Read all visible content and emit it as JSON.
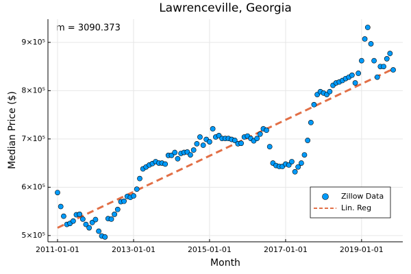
{
  "chart_data": {
    "type": "scatter",
    "title": "Lawrenceville, Georgia",
    "annotation": "m = 3090.373",
    "x_label": "Month",
    "y_label": "Median Price ($)",
    "xlim": [
      "2010-10-01",
      "2020-02-01"
    ],
    "xticks": [
      "2011-01-01",
      "2013-01-01",
      "2015-01-01",
      "2017-01-01",
      "2019-01-01"
    ],
    "ylim": [
      487000,
      948000
    ],
    "yticks": [
      {
        "value": 500000,
        "label": "5×10⁵"
      },
      {
        "value": 600000,
        "label": "6×10⁵"
      },
      {
        "value": 700000,
        "label": "7×10⁵"
      },
      {
        "value": 800000,
        "label": "8×10⁵"
      },
      {
        "value": 900000,
        "label": "9×10⁵"
      }
    ],
    "grid": true,
    "legend": "bottom right",
    "series": [
      {
        "name": "Zillow Data",
        "color": "#009af9",
        "kind": "scatter",
        "x": [
          "2011-01-01",
          "2011-02-01",
          "2011-03-01",
          "2011-04-01",
          "2011-05-01",
          "2011-06-01",
          "2011-07-01",
          "2011-08-01",
          "2011-09-01",
          "2011-10-01",
          "2011-11-01",
          "2011-12-01",
          "2012-01-01",
          "2012-02-01",
          "2012-03-01",
          "2012-04-01",
          "2012-05-01",
          "2012-06-01",
          "2012-07-01",
          "2012-08-01",
          "2012-09-01",
          "2012-10-01",
          "2012-11-01",
          "2012-12-01",
          "2013-01-01",
          "2013-02-01",
          "2013-03-01",
          "2013-04-01",
          "2013-05-01",
          "2013-06-01",
          "2013-07-01",
          "2013-08-01",
          "2013-09-01",
          "2013-10-01",
          "2013-11-01",
          "2013-12-01",
          "2014-01-01",
          "2014-02-01",
          "2014-03-01",
          "2014-04-01",
          "2014-05-01",
          "2014-06-01",
          "2014-07-01",
          "2014-08-01",
          "2014-09-01",
          "2014-10-01",
          "2014-11-01",
          "2014-12-01",
          "2015-01-01",
          "2015-02-01",
          "2015-03-01",
          "2015-04-01",
          "2015-05-01",
          "2015-06-01",
          "2015-07-01",
          "2015-08-01",
          "2015-09-01",
          "2015-10-01",
          "2015-11-01",
          "2015-12-01",
          "2016-01-01",
          "2016-02-01",
          "2016-03-01",
          "2016-04-01",
          "2016-05-01",
          "2016-06-01",
          "2016-07-01",
          "2016-08-01",
          "2016-09-01",
          "2016-10-01",
          "2016-11-01",
          "2016-12-01",
          "2017-01-01",
          "2017-02-01",
          "2017-03-01",
          "2017-04-01",
          "2017-05-01",
          "2017-06-01",
          "2017-07-01",
          "2017-08-01",
          "2017-09-01",
          "2017-10-01",
          "2017-11-01",
          "2017-12-01",
          "2018-01-01",
          "2018-02-01",
          "2018-03-01",
          "2018-04-01",
          "2018-05-01",
          "2018-06-01",
          "2018-07-01",
          "2018-08-01",
          "2018-09-01",
          "2018-10-01",
          "2018-11-01",
          "2018-12-01",
          "2019-01-01",
          "2019-02-01",
          "2019-03-01",
          "2019-04-01",
          "2019-05-01",
          "2019-06-01",
          "2019-07-01",
          "2019-08-01",
          "2019-09-01",
          "2019-10-01",
          "2019-11-01"
        ],
        "values": [
          589000,
          560000,
          540000,
          523000,
          525000,
          530000,
          543000,
          544000,
          534000,
          523000,
          516000,
          527000,
          533000,
          509000,
          499000,
          497000,
          535000,
          534000,
          544000,
          554000,
          570000,
          571000,
          581000,
          579000,
          582000,
          596000,
          618000,
          638000,
          642000,
          646000,
          649000,
          653000,
          650000,
          650000,
          648000,
          666000,
          666000,
          672000,
          659000,
          670000,
          672000,
          673000,
          667000,
          677000,
          690000,
          704000,
          687000,
          699000,
          694000,
          721000,
          704000,
          707000,
          701000,
          701000,
          701000,
          699000,
          697000,
          690000,
          691000,
          704000,
          706000,
          701000,
          696000,
          701000,
          710000,
          721000,
          718000,
          684000,
          650000,
          645000,
          643000,
          643000,
          648000,
          646000,
          653000,
          632000,
          642000,
          650000,
          667000,
          697000,
          734000,
          771000,
          792000,
          798000,
          795000,
          792000,
          798000,
          811000,
          816000,
          818000,
          821000,
          825000,
          828000,
          832000,
          816000,
          836000,
          862000,
          907000,
          931000,
          897000,
          862000,
          828000,
          850000,
          850000,
          866000,
          877000,
          843000
        ]
      },
      {
        "name": "Lin. Reg",
        "color": "#e26f46",
        "kind": "dashed-line",
        "x": [
          "2011-01-01",
          "2019-11-01"
        ],
        "values": [
          516000,
          845000
        ]
      }
    ]
  }
}
